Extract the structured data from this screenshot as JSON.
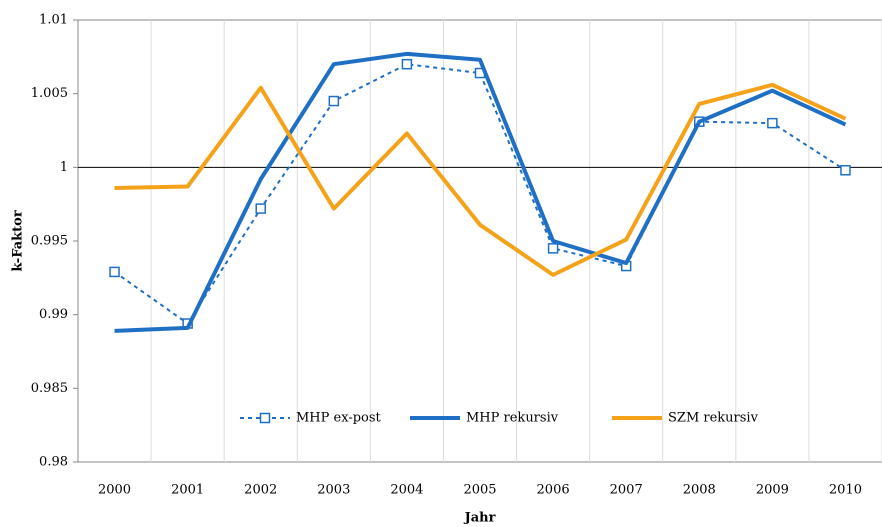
{
  "chart_data": {
    "type": "line",
    "x_label": "Jahr",
    "y_label": "k-Faktor",
    "categories": [
      "2000",
      "2001",
      "2002",
      "2003",
      "2004",
      "2005",
      "2006",
      "2007",
      "2008",
      "2009",
      "2010"
    ],
    "series": [
      {
        "name": "MHP ex-post",
        "color": "#1f6fc5",
        "dashed": true,
        "marker": "square",
        "values": [
          0.9929,
          0.9894,
          0.9972,
          1.0045,
          1.007,
          1.0064,
          0.9945,
          0.9933,
          1.0031,
          1.003,
          0.9998
        ]
      },
      {
        "name": "MHP rekursiv",
        "color": "#1f6fc5",
        "dashed": false,
        "marker": "none",
        "values": [
          0.9889,
          0.9891,
          0.9992,
          1.007,
          1.0077,
          1.0073,
          0.995,
          0.9935,
          1.0031,
          1.0052,
          1.0029
        ]
      },
      {
        "name": "SZM rekursiv",
        "color": "#f5a21b",
        "dashed": false,
        "marker": "none",
        "values": [
          0.9986,
          0.9987,
          1.0054,
          0.9972,
          1.0023,
          0.9961,
          0.9927,
          0.9951,
          1.0043,
          1.0056,
          1.0033
        ]
      }
    ],
    "ylim": [
      0.98,
      1.01
    ],
    "yticks": [
      0.98,
      0.985,
      0.99,
      0.995,
      1,
      1.005,
      1.01
    ],
    "x_axis_crossing": 1,
    "vertical_grid": true,
    "legend": "bottom"
  }
}
